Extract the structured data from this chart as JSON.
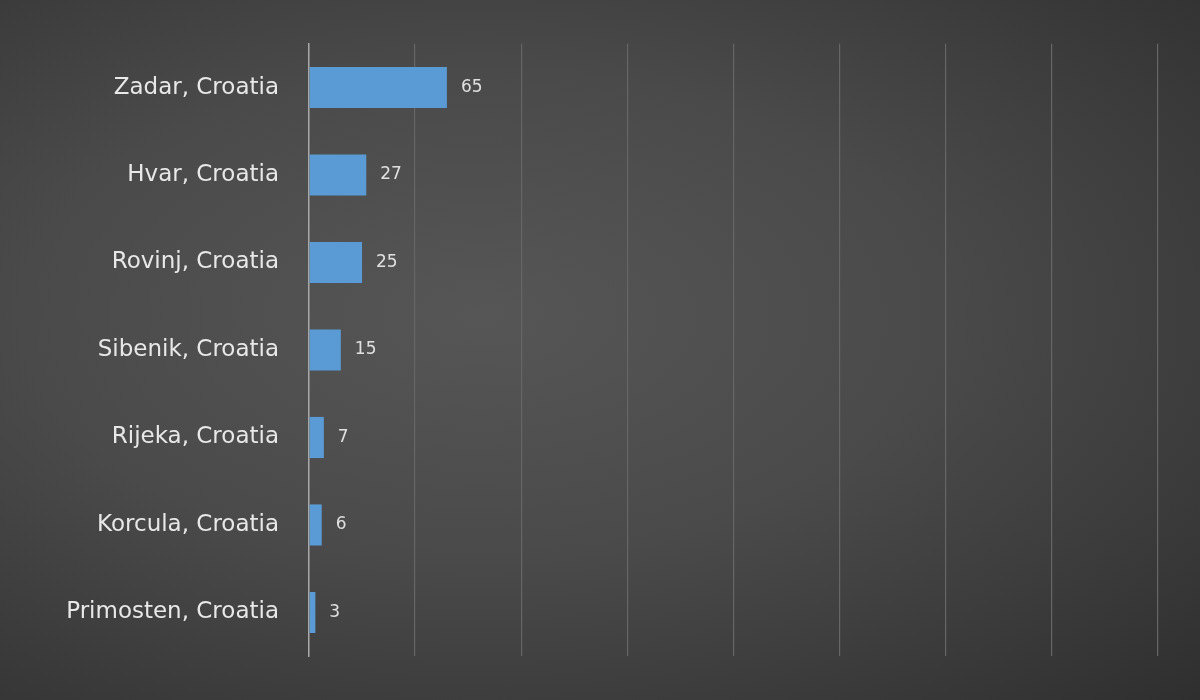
{
  "chart_data": {
    "type": "bar",
    "orientation": "horizontal",
    "categories": [
      "Zadar, Croatia",
      "Hvar, Croatia",
      "Rovinj, Croatia",
      "Sibenik, Croatia",
      "Rijeka, Croatia",
      "Korcula, Croatia",
      "Primosten, Croatia"
    ],
    "values": [
      65,
      27,
      25,
      15,
      7,
      6,
      3
    ],
    "color": "#5b9bd5",
    "data_labels": true,
    "xlim": [
      0,
      420
    ],
    "xticks": [
      {
        "value": 0,
        "label": null
      },
      {
        "value": 50,
        "label": null
      },
      {
        "value": 100,
        "label": null
      },
      {
        "value": 150,
        "label": null
      },
      {
        "value": 200,
        "label": null
      },
      {
        "value": 250,
        "label": null
      },
      {
        "value": 300,
        "label": null
      },
      {
        "value": 350,
        "label": null
      },
      {
        "value": 400,
        "label": null
      }
    ],
    "grid": "x",
    "tick_labels": "y"
  }
}
